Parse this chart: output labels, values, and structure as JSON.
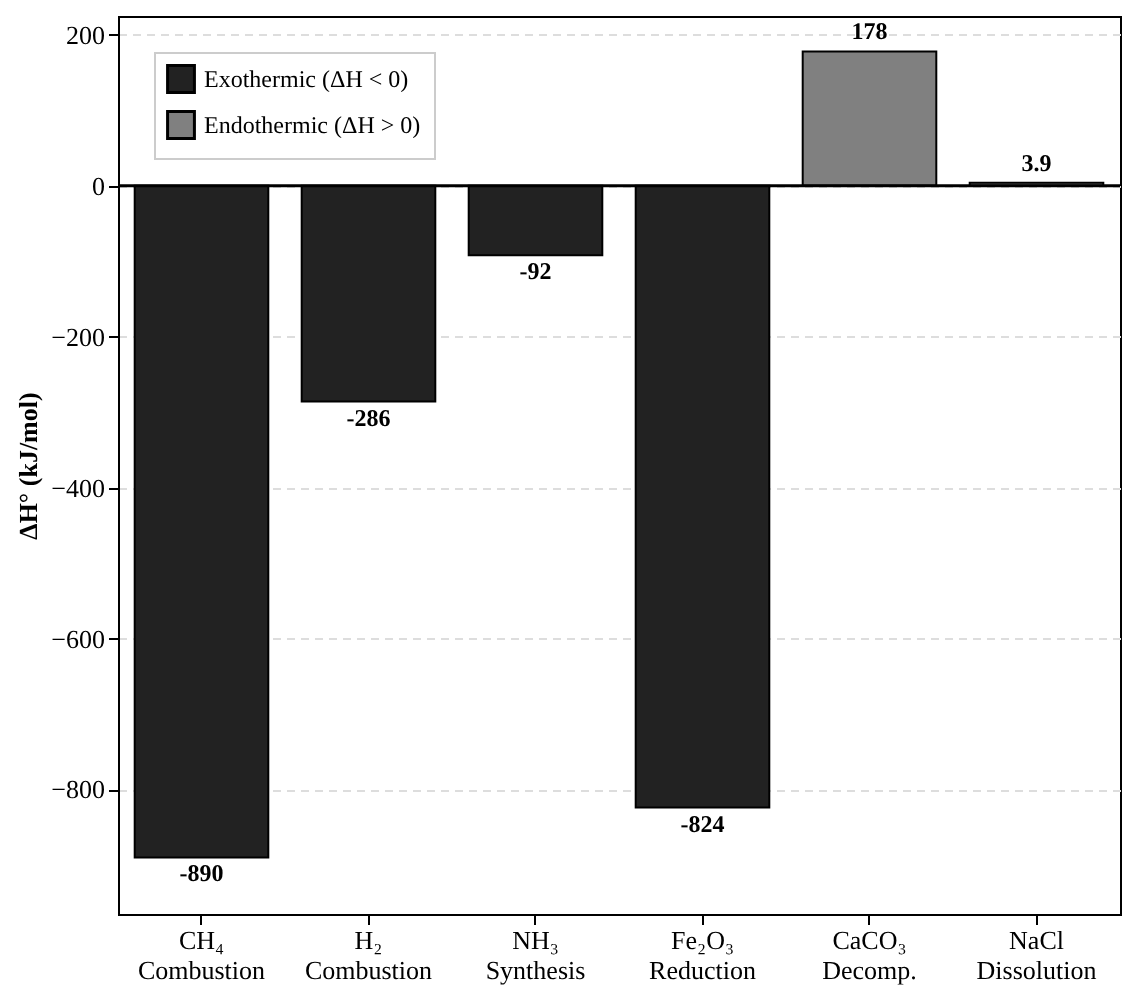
{
  "chart_data": {
    "type": "bar",
    "categories": [
      "CH₄\nCombustion",
      "H₂\nCombustion",
      "NH₃\nSynthesis",
      "Fe₂O₃\nReduction",
      "CaCO₃\nDecomp.",
      "NaCl\nDissolution"
    ],
    "series": [
      {
        "name": "Exothermic (ΔH < 0)",
        "color": "#222222",
        "values": [
          -890,
          -286,
          -92,
          -824,
          null,
          null
        ]
      },
      {
        "name": "Endothermic (ΔH > 0)",
        "color": "#808080",
        "values": [
          null,
          null,
          null,
          null,
          178,
          3.9
        ]
      }
    ],
    "ylabel": "ΔH° (kJ/mol)",
    "ylim": [
      -965,
      225
    ],
    "yticks": [
      -800,
      -600,
      -400,
      -200,
      0,
      200
    ],
    "ref_lines": [
      {
        "axis": "y",
        "value": 0,
        "color": "#000000"
      }
    ],
    "grid": "y",
    "legend": "top left",
    "data_labels": true
  }
}
